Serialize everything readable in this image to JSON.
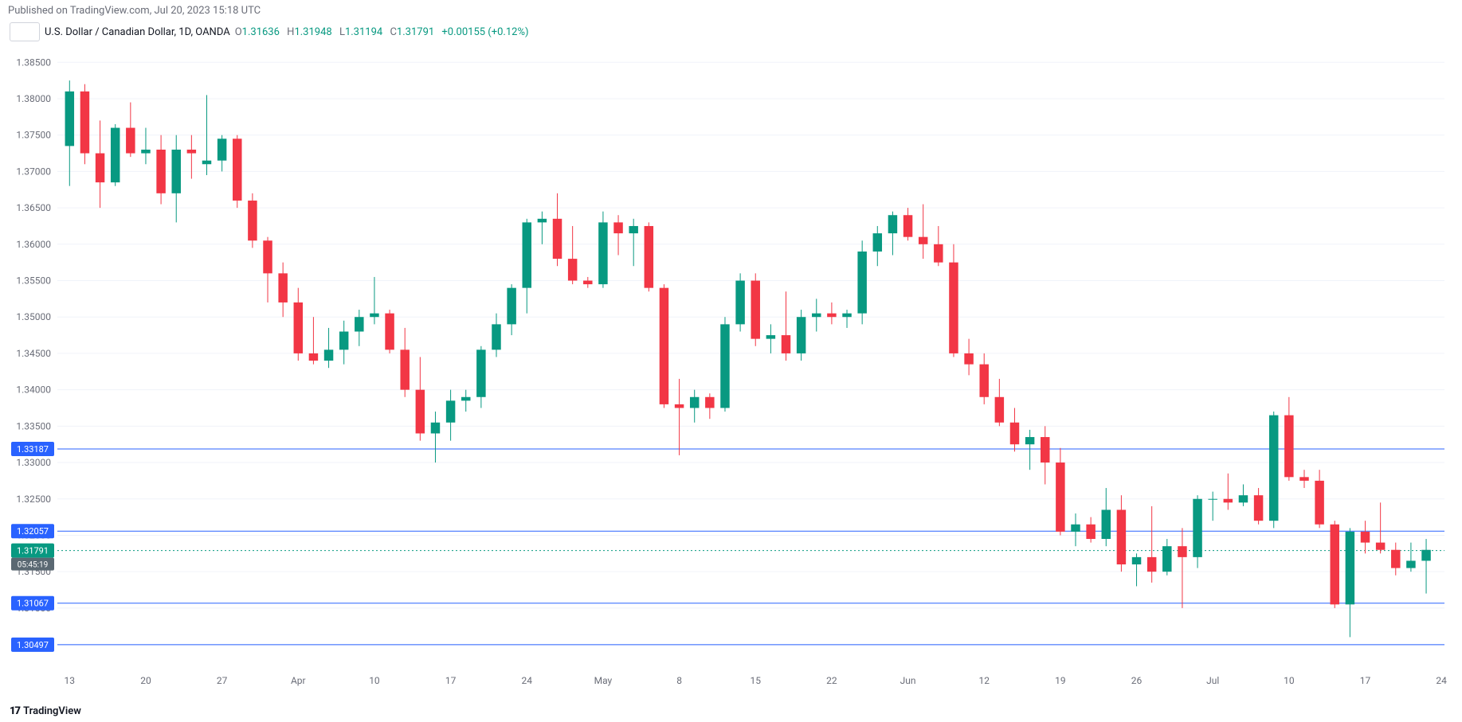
{
  "header": {
    "published": "Published on TradingView.com, Jul 20, 2023 15:18 UTC"
  },
  "info": {
    "symbol": "U.S. Dollar / Canadian Dollar, 1D, OANDA",
    "O_label": "O",
    "O": "1.31636",
    "H_label": "H",
    "H": "1.31948",
    "L_label": "L",
    "L": "1.31194",
    "C_label": "C",
    "C": "1.31791",
    "change": "+0.00155 (+0.12%)",
    "ohlc_color": "#089981"
  },
  "footer": {
    "logo": "17",
    "text": "TradingView"
  },
  "chart": {
    "type": "candlestick",
    "background": "#ffffff",
    "grid_color": "#f0f3fa",
    "axis_text_color": "#6a6d78",
    "up_color": "#089981",
    "down_color": "#f23645",
    "hline_color": "#2962ff",
    "hline_label_bg": "#2962ff",
    "hline_label_fg": "#ffffff",
    "price_label_bg": "#089981",
    "price_label_fg": "#ffffff",
    "countdown_bg": "#5a6872",
    "ymin": 1.302,
    "ymax": 1.387,
    "ytick_step": 0.005,
    "ytick_format": 5,
    "hlines": [
      {
        "value": 1.33187,
        "label": "1.33187"
      },
      {
        "value": 1.32057,
        "label": "1.32057"
      },
      {
        "value": 1.31067,
        "label": "1.31067"
      },
      {
        "value": 1.30497,
        "label": "1.30497"
      }
    ],
    "price_line": {
      "value": 1.31791,
      "label": "1.31791",
      "countdown": "05:45:19"
    },
    "x_labels": [
      "13",
      "20",
      "27",
      "Apr",
      "10",
      "17",
      "24",
      "May",
      "8",
      "15",
      "22",
      "Jun",
      "12",
      "19",
      "26",
      "Jul",
      "10",
      "17",
      "24"
    ],
    "x_label_step": 5,
    "candles": [
      {
        "o": 1.3735,
        "h": 1.3825,
        "l": 1.368,
        "c": 1.381
      },
      {
        "o": 1.381,
        "h": 1.382,
        "l": 1.371,
        "c": 1.3725
      },
      {
        "o": 1.3725,
        "h": 1.377,
        "l": 1.365,
        "c": 1.3685
      },
      {
        "o": 1.3685,
        "h": 1.3765,
        "l": 1.368,
        "c": 1.376
      },
      {
        "o": 1.376,
        "h": 1.3795,
        "l": 1.372,
        "c": 1.3725
      },
      {
        "o": 1.3725,
        "h": 1.376,
        "l": 1.371,
        "c": 1.373
      },
      {
        "o": 1.373,
        "h": 1.375,
        "l": 1.3655,
        "c": 1.367
      },
      {
        "o": 1.367,
        "h": 1.375,
        "l": 1.363,
        "c": 1.373
      },
      {
        "o": 1.373,
        "h": 1.375,
        "l": 1.369,
        "c": 1.3725
      },
      {
        "o": 1.371,
        "h": 1.3805,
        "l": 1.3695,
        "c": 1.3715
      },
      {
        "o": 1.3715,
        "h": 1.375,
        "l": 1.37,
        "c": 1.3745
      },
      {
        "o": 1.3745,
        "h": 1.375,
        "l": 1.365,
        "c": 1.366
      },
      {
        "o": 1.366,
        "h": 1.367,
        "l": 1.3595,
        "c": 1.3605
      },
      {
        "o": 1.3605,
        "h": 1.361,
        "l": 1.352,
        "c": 1.356
      },
      {
        "o": 1.356,
        "h": 1.3575,
        "l": 1.35,
        "c": 1.352
      },
      {
        "o": 1.352,
        "h": 1.354,
        "l": 1.344,
        "c": 1.345
      },
      {
        "o": 1.345,
        "h": 1.35,
        "l": 1.3435,
        "c": 1.344
      },
      {
        "o": 1.344,
        "h": 1.3485,
        "l": 1.343,
        "c": 1.3455
      },
      {
        "o": 1.3455,
        "h": 1.3495,
        "l": 1.3435,
        "c": 1.348
      },
      {
        "o": 1.348,
        "h": 1.351,
        "l": 1.346,
        "c": 1.35
      },
      {
        "o": 1.35,
        "h": 1.3555,
        "l": 1.349,
        "c": 1.3505
      },
      {
        "o": 1.3505,
        "h": 1.351,
        "l": 1.345,
        "c": 1.3455
      },
      {
        "o": 1.3455,
        "h": 1.3485,
        "l": 1.339,
        "c": 1.34
      },
      {
        "o": 1.34,
        "h": 1.3445,
        "l": 1.333,
        "c": 1.334
      },
      {
        "o": 1.334,
        "h": 1.337,
        "l": 1.33,
        "c": 1.3355
      },
      {
        "o": 1.3355,
        "h": 1.34,
        "l": 1.333,
        "c": 1.3385
      },
      {
        "o": 1.3385,
        "h": 1.34,
        "l": 1.337,
        "c": 1.339
      },
      {
        "o": 1.339,
        "h": 1.346,
        "l": 1.3375,
        "c": 1.3455
      },
      {
        "o": 1.3455,
        "h": 1.3505,
        "l": 1.3445,
        "c": 1.349
      },
      {
        "o": 1.349,
        "h": 1.3545,
        "l": 1.3475,
        "c": 1.354
      },
      {
        "o": 1.354,
        "h": 1.3635,
        "l": 1.3505,
        "c": 1.363
      },
      {
        "o": 1.363,
        "h": 1.3645,
        "l": 1.36,
        "c": 1.3635
      },
      {
        "o": 1.3635,
        "h": 1.367,
        "l": 1.357,
        "c": 1.358
      },
      {
        "o": 1.358,
        "h": 1.3625,
        "l": 1.3545,
        "c": 1.355
      },
      {
        "o": 1.355,
        "h": 1.3555,
        "l": 1.354,
        "c": 1.3545
      },
      {
        "o": 1.3545,
        "h": 1.3645,
        "l": 1.354,
        "c": 1.363
      },
      {
        "o": 1.363,
        "h": 1.364,
        "l": 1.3585,
        "c": 1.3615
      },
      {
        "o": 1.3615,
        "h": 1.3635,
        "l": 1.357,
        "c": 1.3625
      },
      {
        "o": 1.3625,
        "h": 1.363,
        "l": 1.3535,
        "c": 1.354
      },
      {
        "o": 1.354,
        "h": 1.3545,
        "l": 1.3375,
        "c": 1.338
      },
      {
        "o": 1.338,
        "h": 1.3415,
        "l": 1.331,
        "c": 1.3375
      },
      {
        "o": 1.3375,
        "h": 1.34,
        "l": 1.3355,
        "c": 1.339
      },
      {
        "o": 1.339,
        "h": 1.3395,
        "l": 1.336,
        "c": 1.3375
      },
      {
        "o": 1.3375,
        "h": 1.35,
        "l": 1.337,
        "c": 1.349
      },
      {
        "o": 1.349,
        "h": 1.356,
        "l": 1.348,
        "c": 1.355
      },
      {
        "o": 1.355,
        "h": 1.356,
        "l": 1.346,
        "c": 1.347
      },
      {
        "o": 1.347,
        "h": 1.349,
        "l": 1.345,
        "c": 1.3475
      },
      {
        "o": 1.3475,
        "h": 1.3535,
        "l": 1.344,
        "c": 1.345
      },
      {
        "o": 1.345,
        "h": 1.351,
        "l": 1.344,
        "c": 1.35
      },
      {
        "o": 1.35,
        "h": 1.3525,
        "l": 1.348,
        "c": 1.3505
      },
      {
        "o": 1.3505,
        "h": 1.352,
        "l": 1.349,
        "c": 1.35
      },
      {
        "o": 1.35,
        "h": 1.351,
        "l": 1.3485,
        "c": 1.3505
      },
      {
        "o": 1.3505,
        "h": 1.3605,
        "l": 1.349,
        "c": 1.359
      },
      {
        "o": 1.359,
        "h": 1.3625,
        "l": 1.357,
        "c": 1.3615
      },
      {
        "o": 1.3615,
        "h": 1.3645,
        "l": 1.3585,
        "c": 1.364
      },
      {
        "o": 1.364,
        "h": 1.365,
        "l": 1.3605,
        "c": 1.361
      },
      {
        "o": 1.361,
        "h": 1.3655,
        "l": 1.358,
        "c": 1.36
      },
      {
        "o": 1.36,
        "h": 1.3625,
        "l": 1.357,
        "c": 1.3575
      },
      {
        "o": 1.3575,
        "h": 1.36,
        "l": 1.3445,
        "c": 1.345
      },
      {
        "o": 1.345,
        "h": 1.347,
        "l": 1.342,
        "c": 1.3435
      },
      {
        "o": 1.3435,
        "h": 1.345,
        "l": 1.338,
        "c": 1.339
      },
      {
        "o": 1.339,
        "h": 1.3415,
        "l": 1.335,
        "c": 1.3355
      },
      {
        "o": 1.3355,
        "h": 1.3375,
        "l": 1.3315,
        "c": 1.3325
      },
      {
        "o": 1.3325,
        "h": 1.3345,
        "l": 1.329,
        "c": 1.3335
      },
      {
        "o": 1.3335,
        "h": 1.335,
        "l": 1.327,
        "c": 1.33
      },
      {
        "o": 1.33,
        "h": 1.332,
        "l": 1.32,
        "c": 1.3205
      },
      {
        "o": 1.3205,
        "h": 1.323,
        "l": 1.3185,
        "c": 1.3215
      },
      {
        "o": 1.3215,
        "h": 1.3225,
        "l": 1.319,
        "c": 1.3195
      },
      {
        "o": 1.3195,
        "h": 1.3265,
        "l": 1.3185,
        "c": 1.3235
      },
      {
        "o": 1.3235,
        "h": 1.3255,
        "l": 1.315,
        "c": 1.316
      },
      {
        "o": 1.316,
        "h": 1.3175,
        "l": 1.313,
        "c": 1.317
      },
      {
        "o": 1.317,
        "h": 1.324,
        "l": 1.3135,
        "c": 1.315
      },
      {
        "o": 1.315,
        "h": 1.3195,
        "l": 1.3145,
        "c": 1.3185
      },
      {
        "o": 1.3185,
        "h": 1.321,
        "l": 1.31,
        "c": 1.317
      },
      {
        "o": 1.317,
        "h": 1.3255,
        "l": 1.3155,
        "c": 1.325
      },
      {
        "o": 1.325,
        "h": 1.326,
        "l": 1.322,
        "c": 1.325
      },
      {
        "o": 1.325,
        "h": 1.3285,
        "l": 1.3235,
        "c": 1.3245
      },
      {
        "o": 1.3245,
        "h": 1.327,
        "l": 1.324,
        "c": 1.3255
      },
      {
        "o": 1.3255,
        "h": 1.3265,
        "l": 1.3215,
        "c": 1.322
      },
      {
        "o": 1.322,
        "h": 1.337,
        "l": 1.321,
        "c": 1.3365
      },
      {
        "o": 1.3365,
        "h": 1.339,
        "l": 1.3275,
        "c": 1.328
      },
      {
        "o": 1.328,
        "h": 1.329,
        "l": 1.3265,
        "c": 1.3275
      },
      {
        "o": 1.3275,
        "h": 1.329,
        "l": 1.321,
        "c": 1.3215
      },
      {
        "o": 1.3215,
        "h": 1.322,
        "l": 1.31,
        "c": 1.3105
      },
      {
        "o": 1.3105,
        "h": 1.321,
        "l": 1.306,
        "c": 1.3205
      },
      {
        "o": 1.3205,
        "h": 1.322,
        "l": 1.3175,
        "c": 1.319
      },
      {
        "o": 1.319,
        "h": 1.3245,
        "l": 1.3175,
        "c": 1.318
      },
      {
        "o": 1.318,
        "h": 1.319,
        "l": 1.3145,
        "c": 1.3155
      },
      {
        "o": 1.3155,
        "h": 1.319,
        "l": 1.315,
        "c": 1.3165
      },
      {
        "o": 1.3165,
        "h": 1.3195,
        "l": 1.312,
        "c": 1.318
      }
    ]
  }
}
